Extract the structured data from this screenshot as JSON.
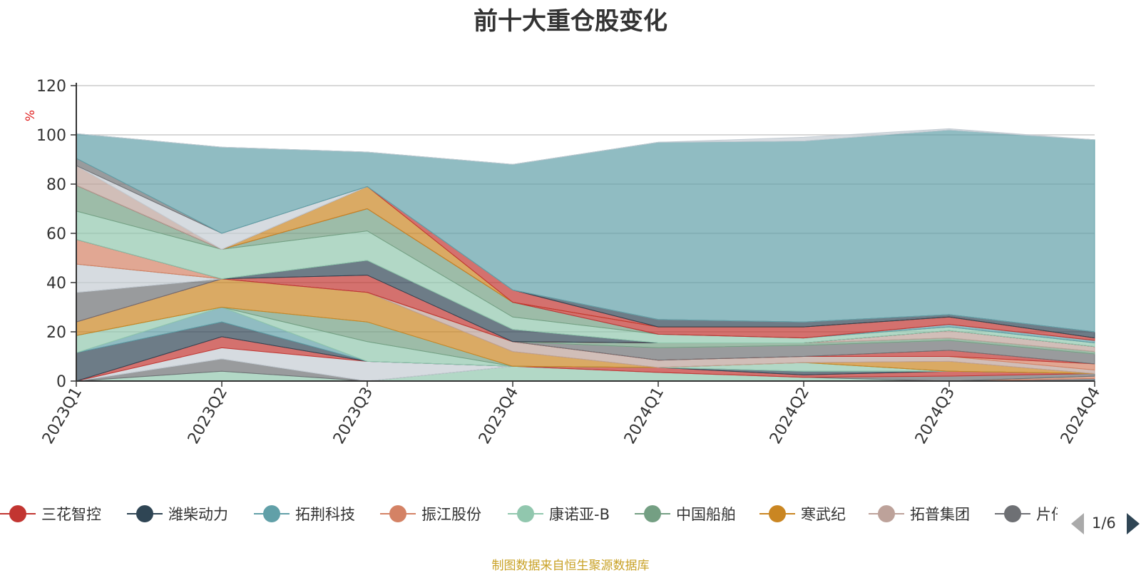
{
  "title": "前十大重仓股变化",
  "source_note": "制图数据来自恒生聚源数据库",
  "pager": {
    "text": "1/6"
  },
  "chart_data": {
    "type": "area",
    "stacked": true,
    "title": "前十大重仓股变化",
    "ylabel": "%",
    "ylim": [
      0,
      120
    ],
    "yticks": [
      0,
      20,
      40,
      60,
      80,
      100,
      120
    ],
    "categories": [
      "2023Q1",
      "2023Q2",
      "2023Q3",
      "2023Q4",
      "2024Q1",
      "2024Q2",
      "2024Q3",
      "2024Q4"
    ],
    "grid": true,
    "legend_position": "bottom",
    "legend": [
      {
        "name": "三花智控",
        "color": "#c23531"
      },
      {
        "name": "潍柴动力",
        "color": "#2f4554"
      },
      {
        "name": "拓荆科技",
        "color": "#61a0a8"
      },
      {
        "name": "振江股份",
        "color": "#d48265"
      },
      {
        "name": "康诺亚-B",
        "color": "#91c7ae"
      },
      {
        "name": "中国船舶",
        "color": "#749f83"
      },
      {
        "name": "寒武纪",
        "color": "#ca8622"
      },
      {
        "name": "拓普集团",
        "color": "#bda29a"
      },
      {
        "name": "片仔癀",
        "color": "#6e7074"
      }
    ],
    "series": [
      {
        "color": "#546570",
        "values": [
          0,
          0,
          0,
          0,
          0,
          0,
          0,
          1.0
        ]
      },
      {
        "color": "#d48265",
        "values": [
          0,
          0,
          0,
          0,
          0,
          0,
          0,
          1.0
        ]
      },
      {
        "color": "#91c7ae",
        "values": [
          0,
          4.0,
          0,
          6.0,
          3.5,
          1.5,
          0,
          0
        ]
      },
      {
        "color": "#6e7074",
        "values": [
          0,
          5.0,
          0,
          0,
          0,
          0,
          2.0,
          1.0
        ]
      },
      {
        "color": "#c4ccd3",
        "values": [
          0,
          4.5,
          8.0,
          0,
          0,
          0,
          0,
          0
        ]
      },
      {
        "color": "#c23531",
        "values": [
          0,
          4.5,
          0,
          0,
          2.0,
          1.0,
          2.0,
          0
        ]
      },
      {
        "color": "#2f4554",
        "values": [
          11.5,
          6.0,
          0,
          0,
          0,
          1.5,
          0,
          0
        ]
      },
      {
        "color": "#61a0a8",
        "values": [
          0,
          6.0,
          0,
          0,
          0,
          0,
          0,
          0
        ]
      },
      {
        "color": "#91c7ae",
        "values": [
          7.0,
          0,
          8.0,
          0,
          0,
          3.5,
          0,
          0
        ]
      },
      {
        "color": "#749f83",
        "values": [
          0,
          0,
          8.0,
          0,
          0,
          0,
          0,
          0
        ]
      },
      {
        "color": "#ca8622",
        "values": [
          5.5,
          11.5,
          12.0,
          6.0,
          0,
          0,
          4.0,
          0
        ]
      },
      {
        "color": "#bda29a",
        "values": [
          0,
          0,
          0,
          4.0,
          3.0,
          2.5,
          2.0,
          1.5
        ]
      },
      {
        "color": "#d48265",
        "values": [
          0,
          0,
          0,
          0,
          0,
          0,
          0,
          2.5
        ]
      },
      {
        "color": "#c23531",
        "values": [
          0,
          0,
          0,
          0,
          0,
          0,
          2.5,
          0
        ]
      },
      {
        "color": "#6e7074",
        "values": [
          12.0,
          0,
          0,
          0,
          5.0,
          4.5,
          4.0,
          4.0
        ]
      },
      {
        "color": "#c4ccd3",
        "values": [
          11.5,
          0,
          0,
          0,
          0,
          0,
          0,
          0
        ]
      },
      {
        "color": "#749f83",
        "values": [
          0,
          0,
          0,
          0,
          2.0,
          1.0,
          1.0,
          1.0
        ]
      },
      {
        "color": "#bda29a",
        "values": [
          0,
          0,
          0,
          0,
          0,
          0,
          3.0,
          2.0
        ]
      },
      {
        "color": "#d48265",
        "values": [
          10.0,
          0,
          0,
          0,
          0,
          0,
          0,
          0
        ]
      },
      {
        "color": "#c23531",
        "values": [
          0,
          0,
          7.0,
          0,
          0,
          0,
          0,
          0
        ]
      },
      {
        "color": "#2f4554",
        "values": [
          0,
          0,
          6.0,
          5.0,
          0,
          0,
          0,
          0
        ]
      },
      {
        "color": "#91c7ae",
        "values": [
          11.5,
          12.0,
          12.0,
          5.0,
          3.5,
          2.0,
          1.5,
          1.5
        ]
      },
      {
        "color": "#749f83",
        "values": [
          10.5,
          0,
          9.0,
          6.0,
          0,
          0,
          0,
          0
        ]
      },
      {
        "color": "#61a0a8",
        "values": [
          0,
          0,
          0,
          0,
          0,
          0,
          1.0,
          1.0
        ]
      },
      {
        "color": "#c23531",
        "values": [
          0,
          0,
          0,
          0,
          3.0,
          4.5,
          3.0,
          1.0
        ]
      },
      {
        "color": "#ca8622",
        "values": [
          0,
          0,
          9.0,
          0,
          0,
          0,
          0,
          0
        ]
      },
      {
        "color": "#c23531",
        "values": [
          0,
          0,
          0,
          5.0,
          0,
          0,
          0,
          0
        ]
      },
      {
        "color": "#2f4554",
        "values": [
          0,
          0,
          0,
          0,
          3.0,
          2.0,
          1.0,
          2.5
        ]
      },
      {
        "color": "#bda29a",
        "values": [
          8.0,
          0,
          0,
          0,
          0,
          0,
          0,
          0
        ]
      },
      {
        "color": "#c4ccd3",
        "values": [
          0,
          6.5,
          0,
          0,
          0,
          0,
          0,
          0
        ]
      },
      {
        "color": "#6e7074",
        "values": [
          3.0,
          0,
          0,
          0,
          0,
          0,
          0,
          0
        ]
      },
      {
        "color": "#61a0a8",
        "values": [
          10.0,
          35.0,
          14.0,
          51.0,
          72.0,
          73.5,
          75.0,
          78.0
        ]
      },
      {
        "color": "#c4ccd3",
        "values": [
          0,
          0,
          0,
          0,
          0,
          1.5,
          0.5,
          0
        ]
      }
    ]
  }
}
